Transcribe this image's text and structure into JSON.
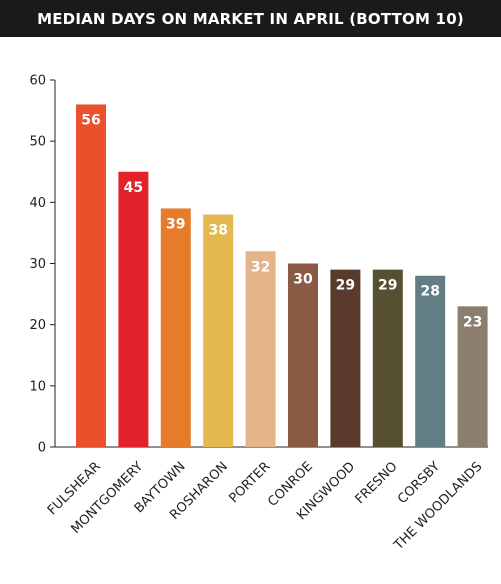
{
  "chart_data": {
    "type": "bar",
    "title": "MEDIAN DAYS ON MARKET IN APRIL (BOTTOM 10)",
    "xlabel": "",
    "ylabel": "",
    "ylim": [
      0,
      60
    ],
    "yticks": [
      0,
      10,
      20,
      30,
      40,
      50,
      60
    ],
    "grid": false,
    "categories": [
      "FULSHEAR",
      "MONTGOMERY",
      "BAYTOWN",
      "ROSHARON",
      "PORTER",
      "CONROE",
      "KINGWOOD",
      "FRESNO",
      "CORSBY",
      "THE WOODLANDS"
    ],
    "values": [
      56,
      45,
      39,
      38,
      32,
      30,
      29,
      29,
      28,
      23
    ],
    "colors": [
      "#e8512b",
      "#e2232b",
      "#e57b2b",
      "#e3b94f",
      "#e4b48a",
      "#8a5a44",
      "#5b3a2e",
      "#565030",
      "#627d84",
      "#8c7e6c"
    ]
  }
}
